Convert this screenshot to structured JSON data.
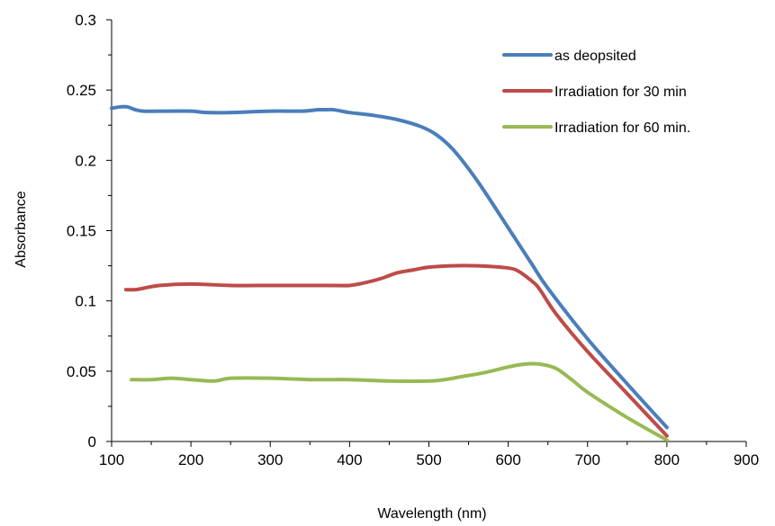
{
  "chart_data": {
    "type": "line",
    "xlabel": "Wavelength (nm)",
    "ylabel": "Absorbance",
    "xlim": [
      100,
      900
    ],
    "ylim": [
      0,
      0.3
    ],
    "xticks": [
      100,
      200,
      300,
      400,
      500,
      600,
      700,
      800,
      900
    ],
    "yticks": [
      0,
      0.05,
      0.1,
      0.15,
      0.2,
      0.25,
      0.3
    ],
    "xtick_labels": [
      "100",
      "200",
      "300",
      "400",
      "500",
      "600",
      "700",
      "800",
      "900"
    ],
    "ytick_labels": [
      "0",
      "0.05",
      "0.1",
      "0.15",
      "0.2",
      "0.25",
      "0.3"
    ],
    "grid": false,
    "legend_position": "top-right",
    "series": [
      {
        "name": "as deopsited",
        "color": "#4a7ebb",
        "x": [
          100,
          110,
          120,
          130,
          140,
          160,
          200,
          220,
          250,
          300,
          340,
          360,
          370,
          380,
          400,
          430,
          460,
          490,
          510,
          530,
          550,
          570,
          600,
          630,
          650,
          700,
          750,
          800
        ],
        "y": [
          0.237,
          0.238,
          0.238,
          0.236,
          0.235,
          0.235,
          0.235,
          0.234,
          0.234,
          0.235,
          0.235,
          0.236,
          0.236,
          0.236,
          0.234,
          0.232,
          0.229,
          0.224,
          0.218,
          0.208,
          0.194,
          0.178,
          0.152,
          0.126,
          0.109,
          0.073,
          0.041,
          0.01
        ]
      },
      {
        "name": "Irradiation for 30 min",
        "color": "#be4b48",
        "x": [
          118,
          130,
          140,
          160,
          200,
          250,
          300,
          350,
          380,
          400,
          420,
          440,
          460,
          480,
          500,
          530,
          560,
          590,
          610,
          630,
          640,
          660,
          700,
          750,
          800
        ],
        "y": [
          0.108,
          0.108,
          0.109,
          0.111,
          0.112,
          0.111,
          0.111,
          0.111,
          0.111,
          0.111,
          0.113,
          0.116,
          0.12,
          0.122,
          0.124,
          0.125,
          0.125,
          0.124,
          0.122,
          0.114,
          0.108,
          0.091,
          0.064,
          0.034,
          0.004
        ]
      },
      {
        "name": "Irradiation for 60 min.",
        "color": "#98b954",
        "x": [
          125,
          150,
          175,
          200,
          230,
          250,
          300,
          350,
          400,
          450,
          500,
          520,
          540,
          570,
          600,
          620,
          640,
          660,
          680,
          700,
          750,
          800
        ],
        "y": [
          0.044,
          0.044,
          0.045,
          0.044,
          0.043,
          0.045,
          0.045,
          0.044,
          0.044,
          0.043,
          0.043,
          0.044,
          0.046,
          0.049,
          0.053,
          0.055,
          0.055,
          0.052,
          0.044,
          0.035,
          0.017,
          0.001
        ]
      }
    ]
  }
}
